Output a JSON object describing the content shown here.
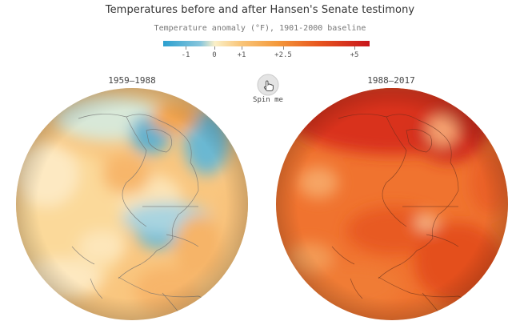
{
  "header": {
    "title": "Temperatures before and after Hansen's Senate testimony",
    "subtitle": "Temperature anomaly (°F), 1901-2000 baseline"
  },
  "legend": {
    "ticks": [
      {
        "label": "-1",
        "value": -1
      },
      {
        "label": "0",
        "value": 0
      },
      {
        "label": "+1",
        "value": 1
      },
      {
        "label": "+2.5",
        "value": 2.5
      },
      {
        "label": "+5",
        "value": 5
      }
    ],
    "colors": [
      "#2b9fcf",
      "#88c6dc",
      "#fbf0c8",
      "#f9c77c",
      "#f49a3c",
      "#e8571f",
      "#c8151b"
    ]
  },
  "controls": {
    "spin_label": "Spin me",
    "spin_icon": "hand-pointer-icon"
  },
  "globes": [
    {
      "period": "1959–1988"
    },
    {
      "period": "1988–2017"
    }
  ]
}
